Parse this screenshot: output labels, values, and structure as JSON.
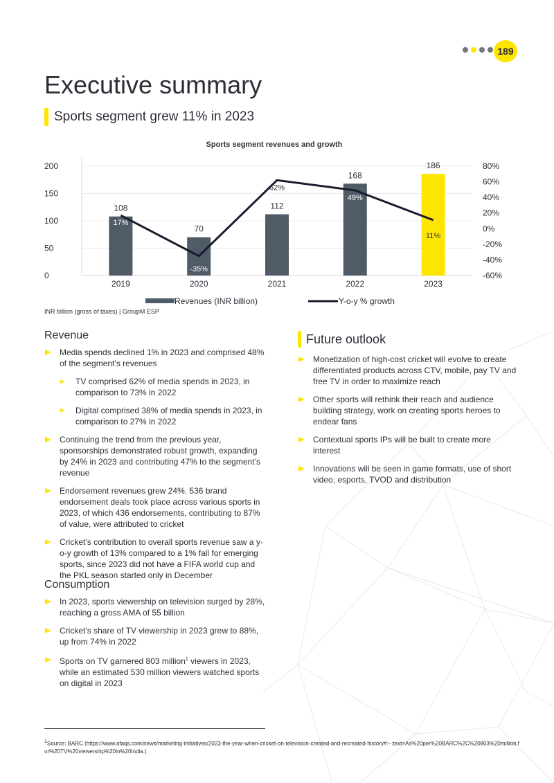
{
  "page": {
    "number": "189",
    "title": "Executive summary",
    "subtitle": "Sports segment grew 11% in 2023",
    "colors": {
      "accent": "#ffe600",
      "bar": "#4f5b66",
      "text": "#2e2e38"
    }
  },
  "chart_data": {
    "type": "bar",
    "title": "Sports segment revenues and growth",
    "categories": [
      "2019",
      "2020",
      "2021",
      "2022",
      "2023"
    ],
    "series": [
      {
        "name": "Revenues (INR billion)",
        "type": "bar",
        "axis": "left",
        "values": [
          108,
          70,
          112,
          168,
          186
        ],
        "labels": [
          "108",
          "70",
          "112",
          "168",
          "186"
        ],
        "colors": [
          "#4f5b66",
          "#4f5b66",
          "#4f5b66",
          "#4f5b66",
          "#ffe600"
        ]
      },
      {
        "name": "Y-o-y % growth",
        "type": "line",
        "axis": "right",
        "values": [
          17,
          -35,
          62,
          49,
          11
        ],
        "labels": [
          "17%",
          "-35%",
          "62%",
          "49%",
          "11%"
        ],
        "color": "#1a1a2e"
      }
    ],
    "y_left": {
      "min": 0,
      "max": 200,
      "ticks": [
        "0",
        "50",
        "100",
        "150",
        "200"
      ]
    },
    "y_right": {
      "min": -60,
      "max": 80,
      "ticks": [
        "-60%",
        "-40%",
        "-20%",
        "0%",
        "20%",
        "40%",
        "60%",
        "80%"
      ]
    },
    "legend_position": "bottom",
    "source": "INR billion (gross of taxes) | GroupM ESP"
  },
  "revenue": {
    "heading": "Revenue",
    "items": [
      {
        "text": "Media spends declined 1% in 2023 and comprised 48% of the segment’s revenues",
        "level": 1
      },
      {
        "text": "TV comprised 62% of media spends in 2023, in comparison to 73% in 2022",
        "level": 2
      },
      {
        "text": "Digital comprised 38% of media spends in 2023, in comparison to 27% in 2022",
        "level": 2
      },
      {
        "text": "Continuing the trend from the previous year, sponsorships demonstrated robust growth, expanding by 24% in 2023 and contributing 47% to the segment’s revenue",
        "level": 1
      },
      {
        "text": "Endorsement revenues grew 24%. 536 brand endorsement deals took place across various sports in 2023, of which 436 endorsements, contributing to 87% of value, were attributed to cricket",
        "level": 1
      },
      {
        "text": "Cricket’s contribution to overall sports revenue saw a y-o-y growth of 13% compared to a 1% fall for emerging sports, since 2023 did not have a FIFA world cup and the PKL season started only in December",
        "level": 1
      }
    ]
  },
  "consumption": {
    "heading": "Consumption",
    "item1": "In 2023, sports viewership on television surged by 28%, reaching a gross AMA of 55 billion",
    "item2": "Cricket’s share of TV viewership in 2023 grew to 88%, up from 74% in 2022",
    "item3_a": "Sports on TV garnered 803 million",
    "item3_sup": "1",
    "item3_b": "  viewers in 2023, while an estimated 530 million viewers watched sports on digital in 2023"
  },
  "outlook": {
    "heading": "Future outlook",
    "items": [
      "Monetization of high-cost cricket will evolve to create differentiated products across CTV, mobile, pay TV and free TV in order to maximize reach",
      "Other sports will rethink their reach and audience building strategy, work on creating sports heroes to endear fans",
      "Contextual sports IPs will be built to create more interest",
      "Innovations will be seen in game formats, use of short video, esports, TVOD and distribution"
    ]
  },
  "footnote": {
    "marker": "1",
    "text": "Source: BARC (https://www.afaqs.com/news/marketing-initiatives/2023-the-year-when-cricket-on-television-created-and-recreated-history#:~:text=As%20per%20BARC%2C%20803%20million,for%20TV%20viewership%20in%20India.)"
  }
}
